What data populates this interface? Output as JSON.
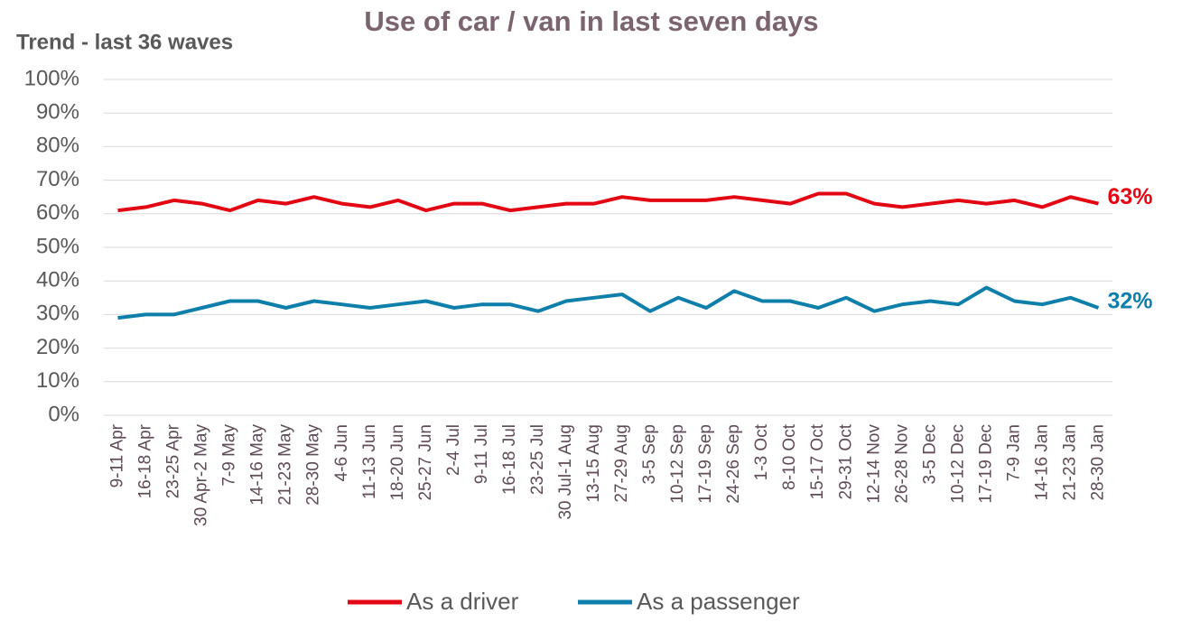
{
  "chart_data": {
    "type": "line",
    "title": "Use of car / van in last seven days",
    "subtitle": "Trend - last 36 waves",
    "categories": [
      "9-11 Apr",
      "16-18 Apr",
      "23-25 Apr",
      "30 Apr-2 May",
      "7-9 May",
      "14-16 May",
      "21-23 May",
      "28-30 May",
      "4-6 Jun",
      "11-13 Jun",
      "18-20 Jun",
      "25-27 Jun",
      "2-4 Jul",
      "9-11 Jul",
      "16-18 Jul",
      "23-25 Jul",
      "30 Jul-1 Aug",
      "13-15 Aug",
      "27-29 Aug",
      "3-5 Sep",
      "10-12 Sep",
      "17-19 Sep",
      "24-26 Sep",
      "1-3 Oct",
      "8-10 Oct",
      "15-17 Oct",
      "29-31 Oct",
      "12-14 Nov",
      "26-28 Nov",
      "3-5 Dec",
      "10-12 Dec",
      "17-19 Dec",
      "7-9 Jan",
      "14-16 Jan",
      "21-23 Jan",
      "28-30 Jan"
    ],
    "series": [
      {
        "name": "As a driver",
        "color": "#e30613",
        "values": [
          61,
          62,
          64,
          63,
          61,
          64,
          63,
          65,
          63,
          62,
          64,
          61,
          63,
          63,
          61,
          62,
          63,
          63,
          65,
          64,
          64,
          64,
          65,
          64,
          63,
          66,
          66,
          63,
          62,
          63,
          64,
          63,
          64,
          62,
          65,
          63
        ],
        "value_labels": [
          null,
          null,
          null,
          null,
          null,
          null,
          null,
          null,
          null,
          null,
          null,
          null,
          null,
          null,
          null,
          null,
          null,
          null,
          null,
          null,
          null,
          null,
          null,
          null,
          null,
          null,
          null,
          null,
          null,
          null,
          null,
          null,
          null,
          null,
          null,
          "63%"
        ]
      },
      {
        "name": "As a passenger",
        "color": "#0e7fab",
        "values": [
          29,
          30,
          30,
          32,
          34,
          34,
          32,
          34,
          33,
          32,
          33,
          34,
          32,
          33,
          33,
          31,
          34,
          35,
          36,
          31,
          35,
          32,
          37,
          34,
          34,
          32,
          35,
          31,
          33,
          34,
          33,
          38,
          34,
          33,
          35,
          32
        ],
        "value_labels": [
          null,
          null,
          null,
          null,
          null,
          null,
          null,
          null,
          null,
          null,
          null,
          null,
          null,
          null,
          null,
          null,
          null,
          null,
          null,
          null,
          null,
          null,
          null,
          null,
          null,
          null,
          null,
          null,
          null,
          null,
          null,
          null,
          null,
          null,
          null,
          "32%"
        ]
      }
    ],
    "ylim": [
      0,
      100
    ],
    "yticks": [
      {
        "value": 0,
        "label": "0%"
      },
      {
        "value": 10,
        "label": "10%"
      },
      {
        "value": 20,
        "label": "20%"
      },
      {
        "value": 30,
        "label": "30%"
      },
      {
        "value": 40,
        "label": "40%"
      },
      {
        "value": 50,
        "label": "50%"
      },
      {
        "value": 60,
        "label": "60%"
      },
      {
        "value": 70,
        "label": "70%"
      },
      {
        "value": 80,
        "label": "80%"
      },
      {
        "value": 90,
        "label": "90%"
      },
      {
        "value": 100,
        "label": "100%"
      }
    ],
    "grid": true,
    "legend": "bottom"
  }
}
